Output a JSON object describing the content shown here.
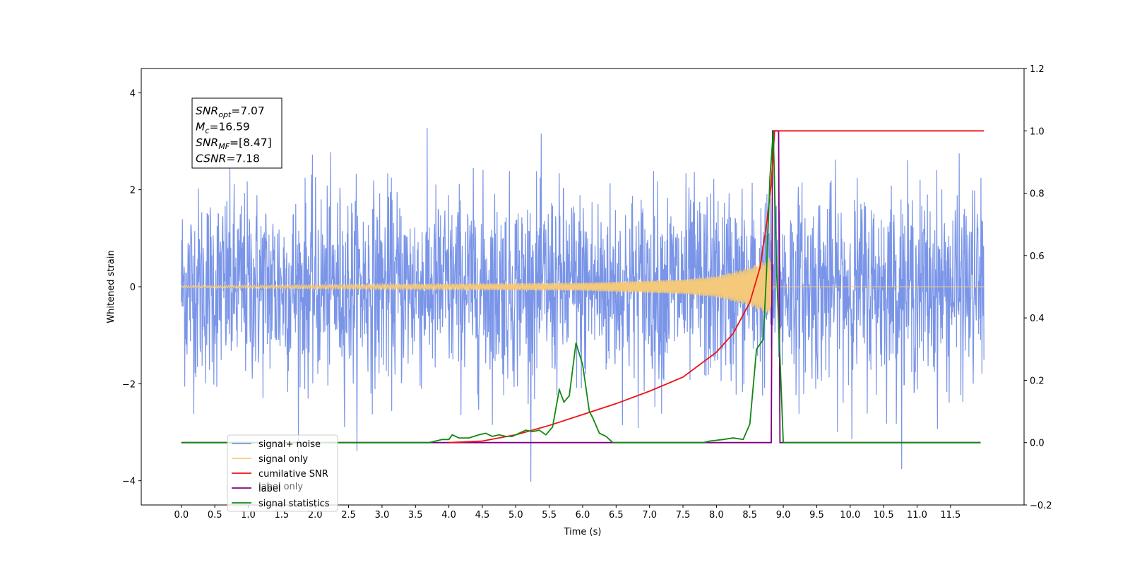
{
  "chart_data": {
    "type": "line",
    "xlabel": "Time (s)",
    "ylabel": "Whitened strain",
    "xlim": [
      -0.6,
      12.6
    ],
    "ylim_left": [
      -4.5,
      4.5
    ],
    "ylim_right": [
      -0.2,
      1.2
    ],
    "x_ticks": [
      "0.0",
      "0.5",
      "1.0",
      "1.5",
      "2.0",
      "2.5",
      "3.0",
      "3.5",
      "4.0",
      "4.5",
      "5.0",
      "5.5",
      "6.0",
      "6.5",
      "7.0",
      "7.5",
      "8.0",
      "8.5",
      "9.0",
      "9.5",
      "10.0",
      "10.5",
      "11.0",
      "11.5"
    ],
    "y_ticks_left": [
      "4",
      "2",
      "0",
      "−2",
      "−4"
    ],
    "y_ticks_right": [
      "1.2",
      "1.0",
      "0.8",
      "0.6",
      "0.4",
      "0.2",
      "0.0",
      "−0.2"
    ],
    "info_box": {
      "lines": [
        {
          "sym": "SNR",
          "sub": "opt",
          "val": "=7.07"
        },
        {
          "sym": "M",
          "sub": "c",
          "val": "=16.59"
        },
        {
          "sym": "SNR",
          "sub": "MF",
          "val": "=[8.47]"
        },
        {
          "sym": "CSNR",
          "sub": "",
          "val": "=7.18"
        }
      ]
    },
    "legend": {
      "position": "lower-left",
      "entries": [
        {
          "label": "signal+ noise",
          "color": "#7a95e8"
        },
        {
          "label": "signal only",
          "color": "#f5c97a"
        },
        {
          "label": "cumilative SNR",
          "color": "#ee1111"
        },
        {
          "label": "label",
          "color": "#800080"
        },
        {
          "label": "signal statistics",
          "color": "#118811"
        }
      ],
      "ghost_text": [
        "label only"
      ]
    },
    "series": [
      {
        "name": "signal+ noise",
        "axis": "left",
        "color": "#7a95e8",
        "note_envelope": "random noise, std ~1.0, range about -4.1 to 4.1",
        "x_range": [
          0.0,
          12.0
        ]
      },
      {
        "name": "signal only",
        "axis": "left",
        "color": "#f5c97a",
        "chirp_end": 8.85,
        "envelope_points": [
          [
            0.0,
            0.02
          ],
          [
            6.0,
            0.08
          ],
          [
            7.5,
            0.15
          ],
          [
            8.0,
            0.22
          ],
          [
            8.5,
            0.4
          ],
          [
            8.8,
            0.6
          ],
          [
            8.85,
            0.0
          ],
          [
            12.0,
            0.0
          ]
        ]
      },
      {
        "name": "cumilative SNR",
        "axis": "right",
        "color": "#ee1111",
        "points": [
          [
            4.0,
            0.0
          ],
          [
            4.5,
            0.005
          ],
          [
            5.0,
            0.025
          ],
          [
            5.5,
            0.055
          ],
          [
            6.0,
            0.09
          ],
          [
            6.5,
            0.125
          ],
          [
            7.0,
            0.165
          ],
          [
            7.5,
            0.21
          ],
          [
            8.0,
            0.29
          ],
          [
            8.25,
            0.35
          ],
          [
            8.5,
            0.45
          ],
          [
            8.65,
            0.56
          ],
          [
            8.75,
            0.7
          ],
          [
            8.82,
            0.83
          ],
          [
            8.87,
            1.0
          ],
          [
            12.0,
            1.0
          ]
        ]
      },
      {
        "name": "label",
        "axis": "right",
        "color": "#800080",
        "points": [
          [
            0.0,
            0.0
          ],
          [
            8.82,
            0.0
          ],
          [
            8.84,
            1.0
          ],
          [
            8.93,
            1.0
          ],
          [
            8.95,
            0.0
          ],
          [
            11.95,
            0.0
          ]
        ]
      },
      {
        "name": "signal statistics",
        "axis": "right",
        "color": "#118811",
        "points": [
          [
            0.0,
            0.0
          ],
          [
            3.7,
            0.0
          ],
          [
            3.9,
            0.01
          ],
          [
            4.0,
            0.01
          ],
          [
            4.05,
            0.025
          ],
          [
            4.15,
            0.015
          ],
          [
            4.3,
            0.015
          ],
          [
            4.45,
            0.025
          ],
          [
            4.55,
            0.03
          ],
          [
            4.65,
            0.02
          ],
          [
            4.75,
            0.025
          ],
          [
            4.85,
            0.02
          ],
          [
            4.95,
            0.02
          ],
          [
            5.05,
            0.03
          ],
          [
            5.15,
            0.04
          ],
          [
            5.25,
            0.035
          ],
          [
            5.35,
            0.04
          ],
          [
            5.45,
            0.025
          ],
          [
            5.55,
            0.05
          ],
          [
            5.65,
            0.17
          ],
          [
            5.72,
            0.13
          ],
          [
            5.8,
            0.15
          ],
          [
            5.9,
            0.32
          ],
          [
            6.0,
            0.25
          ],
          [
            6.1,
            0.1
          ],
          [
            6.15,
            0.08
          ],
          [
            6.25,
            0.03
          ],
          [
            6.35,
            0.02
          ],
          [
            6.45,
            0.0
          ],
          [
            7.8,
            0.0
          ],
          [
            7.9,
            0.005
          ],
          [
            8.1,
            0.01
          ],
          [
            8.25,
            0.015
          ],
          [
            8.4,
            0.01
          ],
          [
            8.5,
            0.06
          ],
          [
            8.6,
            0.3
          ],
          [
            8.7,
            0.33
          ],
          [
            8.75,
            0.55
          ],
          [
            8.8,
            0.85
          ],
          [
            8.85,
            1.0
          ],
          [
            8.9,
            0.55
          ],
          [
            9.0,
            0.0
          ],
          [
            11.95,
            0.0
          ]
        ]
      }
    ]
  }
}
